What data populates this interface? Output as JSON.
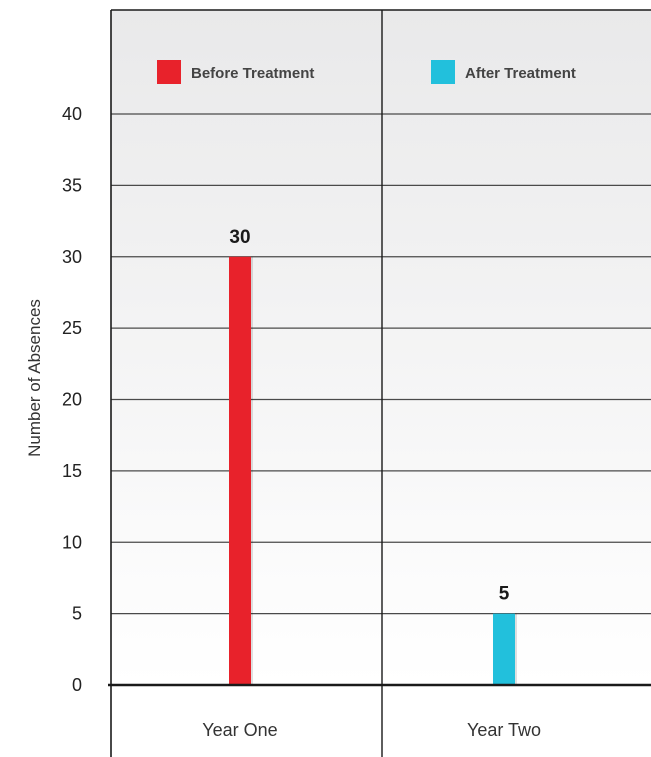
{
  "chart_data": {
    "type": "bar",
    "categories": [
      "Year One",
      "Year Two"
    ],
    "series": [
      {
        "name": "Before Treatment",
        "values": [
          30,
          null
        ],
        "color": "#e8222b"
      },
      {
        "name": "After Treatment",
        "values": [
          null,
          5
        ],
        "color": "#22c0dc"
      }
    ],
    "data_labels": [
      "30",
      "5"
    ],
    "ylabel": "Number of Absences",
    "xlabel": "",
    "ylim": [
      0,
      40
    ],
    "yticks": [
      0,
      5,
      10,
      15,
      20,
      25,
      30,
      35,
      40
    ],
    "grid": true,
    "legend_position": "top"
  }
}
